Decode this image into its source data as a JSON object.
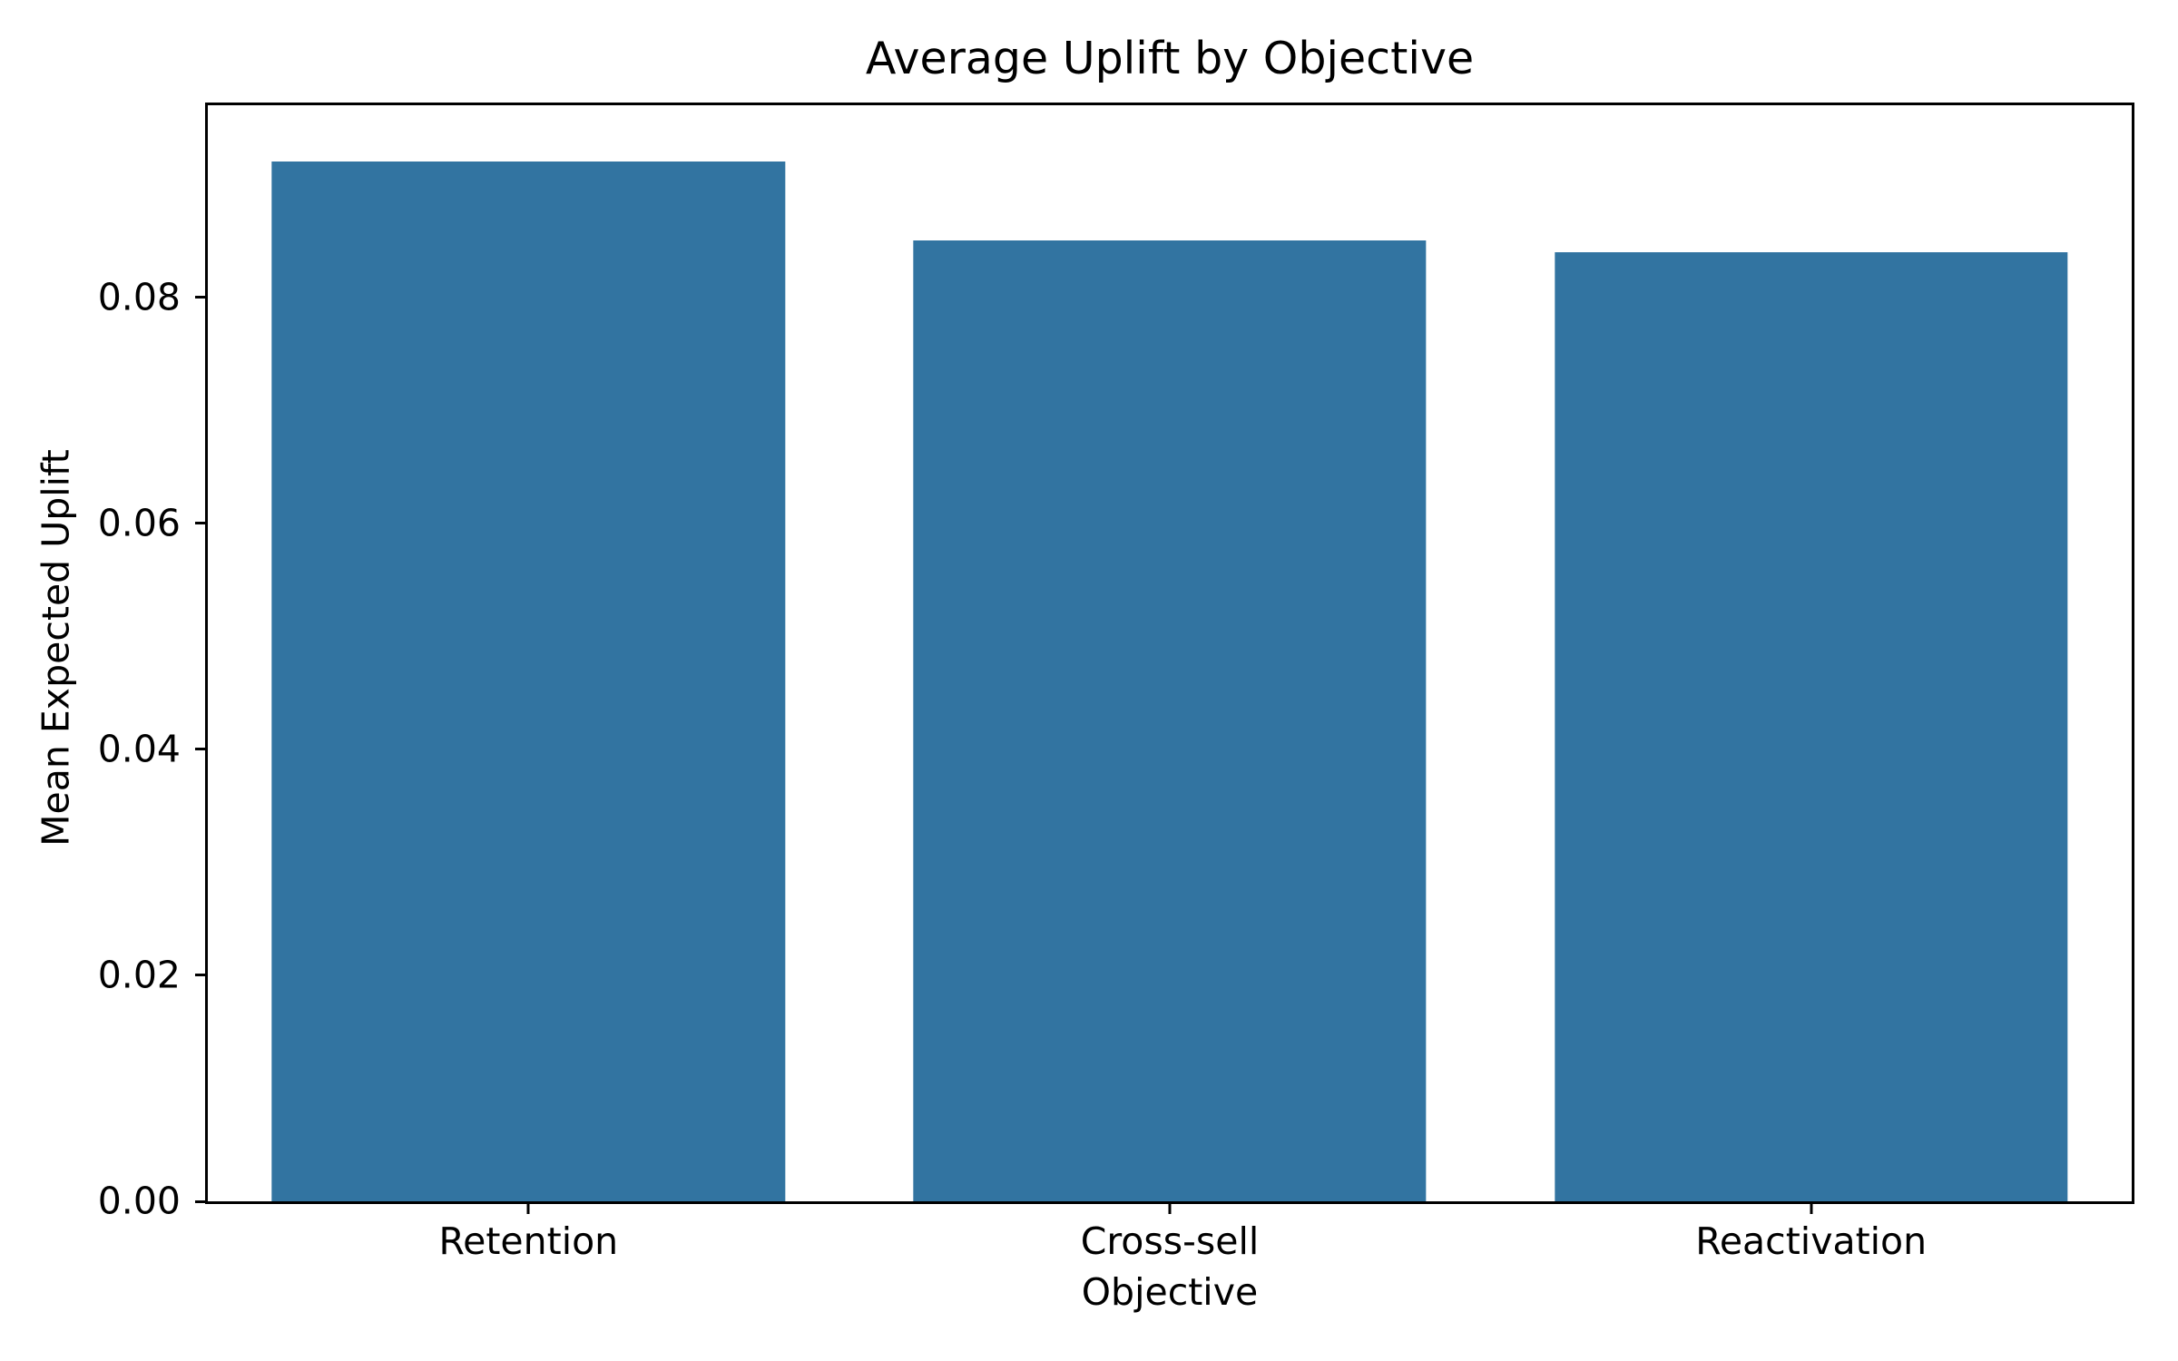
{
  "chart_data": {
    "type": "bar",
    "title": "Average Uplift by Objective",
    "xlabel": "Objective",
    "ylabel": "Mean Expected Uplift",
    "categories": [
      "Retention",
      "Cross-sell",
      "Reactivation"
    ],
    "values": [
      0.092,
      0.085,
      0.084
    ],
    "ylim": [
      0,
      0.097
    ],
    "yticks": [
      0,
      0.02,
      0.04,
      0.06,
      0.08
    ],
    "ytick_labels": [
      "0.00",
      "0.02",
      "0.04",
      "0.06",
      "0.08"
    ],
    "bar_width_fraction": 0.8,
    "bar_color": "#3274a1",
    "axis_color": "#000000",
    "text_color": "#000000",
    "background_color": "#ffffff",
    "grid": false,
    "legend": false
  }
}
